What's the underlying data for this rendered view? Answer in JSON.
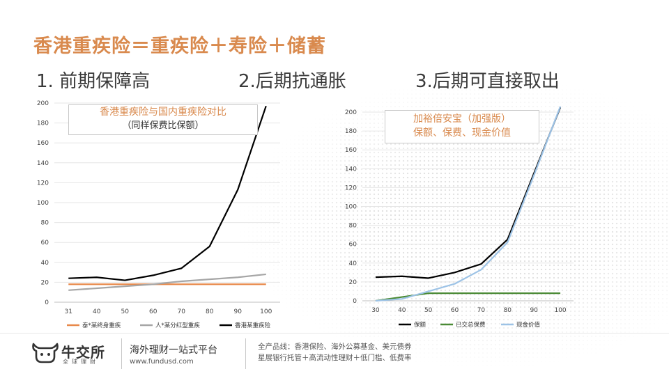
{
  "page": {
    "title": "香港重疾险＝重疾险＋寿险＋储蓄",
    "points": [
      "1. 前期保障高",
      "2.后期抗通胀",
      "3.后期可直接取出"
    ]
  },
  "footer": {
    "brand": "牛交所",
    "brand_tag": "全球理财",
    "slogan": "海外理财一站式平台",
    "url": "www.fundusd.com",
    "line1": "全产品线：香港保险、海外公募基金、美元债券",
    "line2": "星展银行托管＋高流动性理财＋低门槛、低费率"
  },
  "chart_data": [
    {
      "type": "line",
      "annotation": [
        "香港重疾险与国内重疾险对比",
        "（同样保费比保额）"
      ],
      "categories": [
        "31",
        "40",
        "50",
        "60",
        "70",
        "80",
        "90",
        "100"
      ],
      "ylim": [
        0,
        200
      ],
      "yticks": [
        0,
        20,
        40,
        60,
        80,
        100,
        120,
        140,
        160,
        180,
        200
      ],
      "series": [
        {
          "name": "泰*某终身重疾",
          "color": "#e8894b",
          "values": [
            18,
            18,
            18,
            18,
            18,
            18,
            18,
            18
          ]
        },
        {
          "name": "人*某分红型重疾",
          "color": "#a6a6a6",
          "values": [
            12,
            14,
            16,
            18,
            21,
            23,
            25,
            28
          ]
        },
        {
          "name": "香港某重疾险",
          "color": "#000000",
          "values": [
            24,
            25,
            22,
            27,
            34,
            56,
            113,
            197
          ]
        }
      ]
    },
    {
      "type": "line",
      "annotation": [
        "加裕倍安宝（加强版）",
        "保额、保费、现金价值"
      ],
      "categories": [
        "30",
        "40",
        "50",
        "60",
        "70",
        "80",
        "90",
        "100"
      ],
      "ylim": [
        0,
        200
      ],
      "yticks": [
        0,
        20,
        40,
        60,
        80,
        100,
        120,
        140,
        160,
        180,
        200
      ],
      "series": [
        {
          "name": "保额",
          "color": "#000000",
          "values": [
            25,
            26,
            24,
            30,
            39,
            65,
            135,
            205
          ]
        },
        {
          "name": "已交总保费",
          "color": "#4a8a35",
          "values": [
            0,
            4,
            8,
            8,
            8,
            8,
            8,
            8
          ]
        },
        {
          "name": "现金价值",
          "color": "#9dc3e6",
          "values": [
            0,
            2,
            10,
            18,
            33,
            62,
            133,
            206
          ]
        }
      ]
    }
  ]
}
